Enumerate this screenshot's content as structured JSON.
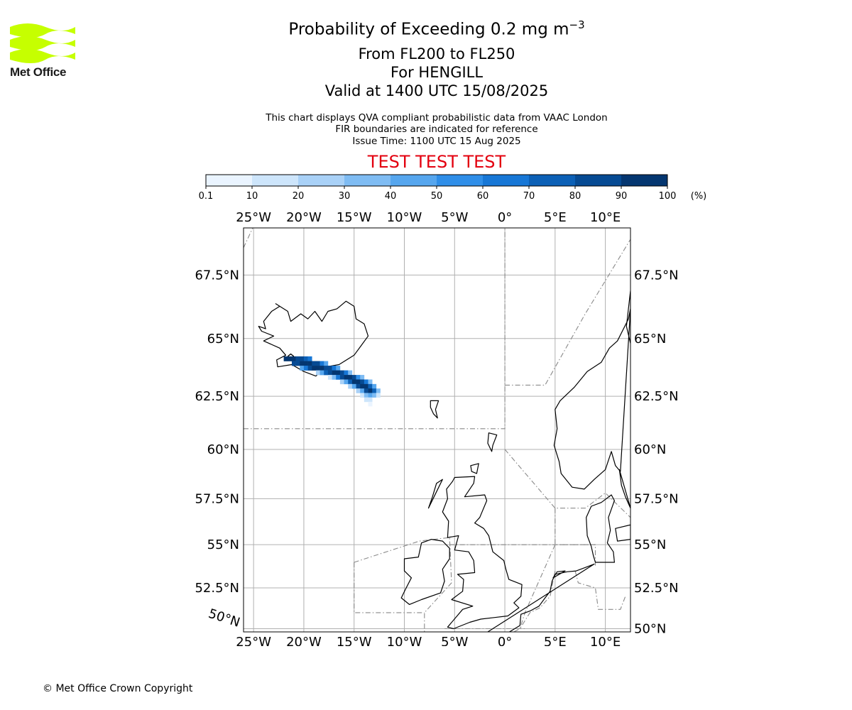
{
  "header": {
    "title_main": "Probability of Exceeding 0.2 mg m",
    "title_exponent": "−3",
    "title_level": "From FL200 to FL250",
    "title_volcano": "For HENGILL",
    "title_valid": "Valid at 1400 UTC 15/08/2025",
    "info_line1": "This chart displays QVA compliant probabilistic data from VAAC London",
    "info_line2": "FIR boundaries are indicated for reference",
    "info_line3": "Issue Time: 1100 UTC 15 Aug 2025",
    "test_banner": "TEST TEST TEST"
  },
  "logo": {
    "text": "Met Office",
    "color": "#c6ff00"
  },
  "colorbar": {
    "ticks": [
      "0.1",
      "10",
      "20",
      "30",
      "40",
      "50",
      "60",
      "70",
      "80",
      "90",
      "100"
    ],
    "unit": "(%)",
    "colors": [
      "#eaf4ff",
      "#cde5fb",
      "#a9d1f7",
      "#7fbcf3",
      "#56a6ee",
      "#2f8ee8",
      "#1777d6",
      "#0c60b6",
      "#064a93",
      "#043670"
    ]
  },
  "map": {
    "lon_range": [
      -26,
      12.5
    ],
    "lat_range": [
      49.8,
      69.2
    ],
    "lon_ticks": [
      -25,
      -20,
      -15,
      -10,
      -5,
      0,
      5,
      10
    ],
    "lat_ticks": [
      50,
      52.5,
      55,
      57.5,
      60,
      62.5,
      65,
      67.5
    ],
    "lon_labels": [
      "25°W",
      "20°W",
      "15°W",
      "10°W",
      "5°W",
      "0°",
      "5°E",
      "10°E"
    ],
    "lat_labels": [
      "50°N",
      "52.5°N",
      "55°N",
      "57.5°N",
      "60°N",
      "62.5°N",
      "65°N",
      "67.5°N"
    ],
    "corner_label": "50°N",
    "gridlines": true,
    "plume_cells": [
      {
        "lon": -21.8,
        "lat": 64.15,
        "p": 95
      },
      {
        "lon": -21.4,
        "lat": 64.15,
        "p": 95
      },
      {
        "lon": -21.0,
        "lat": 64.15,
        "p": 92
      },
      {
        "lon": -20.6,
        "lat": 64.15,
        "p": 88
      },
      {
        "lon": -20.2,
        "lat": 64.15,
        "p": 85
      },
      {
        "lon": -19.8,
        "lat": 64.15,
        "p": 70
      },
      {
        "lon": -19.4,
        "lat": 64.15,
        "p": 60
      },
      {
        "lon": -21.0,
        "lat": 63.95,
        "p": 85
      },
      {
        "lon": -20.6,
        "lat": 63.95,
        "p": 88
      },
      {
        "lon": -20.2,
        "lat": 63.95,
        "p": 90
      },
      {
        "lon": -19.8,
        "lat": 63.95,
        "p": 92
      },
      {
        "lon": -19.4,
        "lat": 63.95,
        "p": 90
      },
      {
        "lon": -19.0,
        "lat": 63.95,
        "p": 85
      },
      {
        "lon": -18.6,
        "lat": 63.95,
        "p": 80
      },
      {
        "lon": -18.2,
        "lat": 63.95,
        "p": 65
      },
      {
        "lon": -17.8,
        "lat": 63.95,
        "p": 45
      },
      {
        "lon": -20.2,
        "lat": 63.75,
        "p": 45
      },
      {
        "lon": -19.8,
        "lat": 63.75,
        "p": 65
      },
      {
        "lon": -19.4,
        "lat": 63.75,
        "p": 80
      },
      {
        "lon": -19.0,
        "lat": 63.75,
        "p": 90
      },
      {
        "lon": -18.6,
        "lat": 63.75,
        "p": 95
      },
      {
        "lon": -18.2,
        "lat": 63.75,
        "p": 92
      },
      {
        "lon": -17.8,
        "lat": 63.75,
        "p": 88
      },
      {
        "lon": -17.4,
        "lat": 63.75,
        "p": 80
      },
      {
        "lon": -17.0,
        "lat": 63.75,
        "p": 65
      },
      {
        "lon": -16.6,
        "lat": 63.75,
        "p": 40
      },
      {
        "lon": -18.6,
        "lat": 63.55,
        "p": 25
      },
      {
        "lon": -18.2,
        "lat": 63.55,
        "p": 45
      },
      {
        "lon": -17.8,
        "lat": 63.55,
        "p": 70
      },
      {
        "lon": -17.4,
        "lat": 63.55,
        "p": 88
      },
      {
        "lon": -17.0,
        "lat": 63.55,
        "p": 95
      },
      {
        "lon": -16.6,
        "lat": 63.55,
        "p": 92
      },
      {
        "lon": -16.2,
        "lat": 63.55,
        "p": 85
      },
      {
        "lon": -15.8,
        "lat": 63.55,
        "p": 60
      },
      {
        "lon": -15.4,
        "lat": 63.55,
        "p": 35
      },
      {
        "lon": -17.4,
        "lat": 63.35,
        "p": 15
      },
      {
        "lon": -17.0,
        "lat": 63.35,
        "p": 35
      },
      {
        "lon": -16.6,
        "lat": 63.35,
        "p": 60
      },
      {
        "lon": -16.2,
        "lat": 63.35,
        "p": 85
      },
      {
        "lon": -15.8,
        "lat": 63.35,
        "p": 95
      },
      {
        "lon": -15.4,
        "lat": 63.35,
        "p": 92
      },
      {
        "lon": -15.0,
        "lat": 63.35,
        "p": 85
      },
      {
        "lon": -14.6,
        "lat": 63.35,
        "p": 55
      },
      {
        "lon": -14.2,
        "lat": 63.35,
        "p": 30
      },
      {
        "lon": -16.2,
        "lat": 63.15,
        "p": 20
      },
      {
        "lon": -15.8,
        "lat": 63.15,
        "p": 40
      },
      {
        "lon": -15.4,
        "lat": 63.15,
        "p": 70
      },
      {
        "lon": -15.0,
        "lat": 63.15,
        "p": 90
      },
      {
        "lon": -14.6,
        "lat": 63.15,
        "p": 95
      },
      {
        "lon": -14.2,
        "lat": 63.15,
        "p": 85
      },
      {
        "lon": -13.8,
        "lat": 63.15,
        "p": 60
      },
      {
        "lon": -13.4,
        "lat": 63.15,
        "p": 30
      },
      {
        "lon": -15.4,
        "lat": 62.95,
        "p": 20
      },
      {
        "lon": -15.0,
        "lat": 62.95,
        "p": 45
      },
      {
        "lon": -14.6,
        "lat": 62.95,
        "p": 80
      },
      {
        "lon": -14.2,
        "lat": 62.95,
        "p": 95
      },
      {
        "lon": -13.8,
        "lat": 62.95,
        "p": 92
      },
      {
        "lon": -13.4,
        "lat": 62.95,
        "p": 75
      },
      {
        "lon": -13.0,
        "lat": 62.95,
        "p": 40
      },
      {
        "lon": -14.6,
        "lat": 62.75,
        "p": 20
      },
      {
        "lon": -14.2,
        "lat": 62.75,
        "p": 45
      },
      {
        "lon": -13.8,
        "lat": 62.75,
        "p": 85
      },
      {
        "lon": -13.4,
        "lat": 62.75,
        "p": 95
      },
      {
        "lon": -13.0,
        "lat": 62.75,
        "p": 70
      },
      {
        "lon": -12.6,
        "lat": 62.75,
        "p": 30
      },
      {
        "lon": -14.2,
        "lat": 62.55,
        "p": 15
      },
      {
        "lon": -13.8,
        "lat": 62.55,
        "p": 30
      },
      {
        "lon": -13.4,
        "lat": 62.55,
        "p": 45
      },
      {
        "lon": -13.0,
        "lat": 62.55,
        "p": 35
      },
      {
        "lon": -12.6,
        "lat": 62.55,
        "p": 15
      },
      {
        "lon": -13.8,
        "lat": 62.35,
        "p": 10
      },
      {
        "lon": -13.4,
        "lat": 62.35,
        "p": 12
      },
      {
        "lon": -13.4,
        "lat": 62.15,
        "p": 5
      }
    ]
  },
  "footer": {
    "copyright": "© Met Office Crown Copyright"
  }
}
